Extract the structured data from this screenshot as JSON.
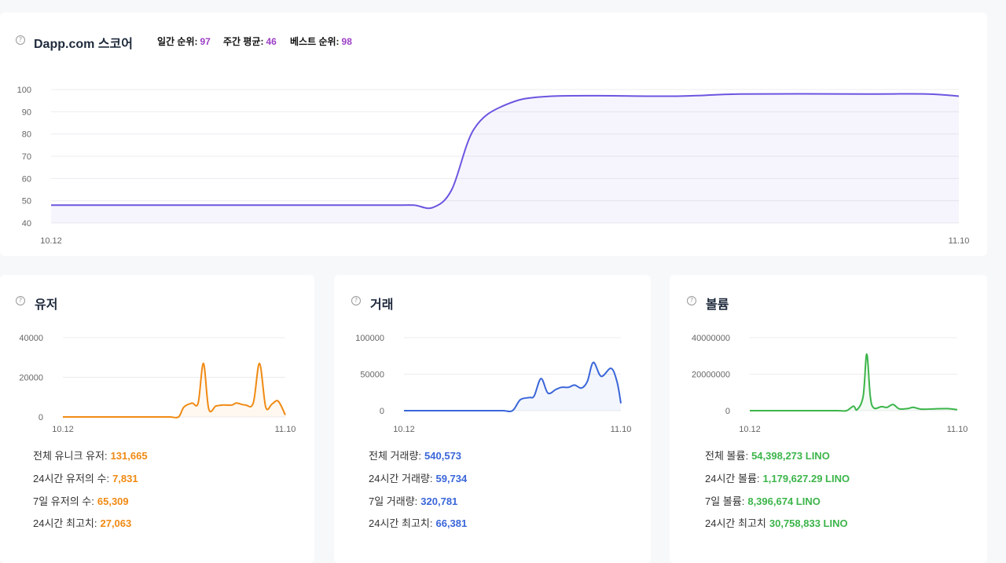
{
  "score": {
    "title": "Dapp.com 스코어",
    "help_icon": "question-circle-icon",
    "stats": [
      {
        "label": "일간 순위:",
        "value": "97"
      },
      {
        "label": "주간 평균:",
        "value": "46"
      },
      {
        "label": "베스트 순위:",
        "value": "98"
      }
    ],
    "accent": "#9c3fc6"
  },
  "users": {
    "title": "유저",
    "color": "#f08a13",
    "stats": [
      {
        "label": "전체 유니크 유저:",
        "value": "131,665"
      },
      {
        "label": "24시간 유저의 수:",
        "value": "7,831"
      },
      {
        "label": "7일 유저의 수:",
        "value": "65,309"
      },
      {
        "label": "24시간 최고치:",
        "value": "27,063"
      }
    ]
  },
  "transactions": {
    "title": "거래",
    "color": "#3a66d9",
    "stats": [
      {
        "label": "전체 거래량:",
        "value": "540,573"
      },
      {
        "label": "24시간 거래량:",
        "value": "59,734"
      },
      {
        "label": "7일 거래량:",
        "value": "320,781"
      },
      {
        "label": "24시간 최고치:",
        "value": "66,381"
      }
    ]
  },
  "volume": {
    "title": "볼륨",
    "color": "#3cb54a",
    "stats": [
      {
        "label": "전체 볼륨:",
        "value": "54,398,273 LINO"
      },
      {
        "label": "24시간 볼륨:",
        "value": "1,179,627.29 LINO"
      },
      {
        "label": "7일 볼륨:",
        "value": "8,396,674 LINO"
      },
      {
        "label": "24시간 최고치",
        "value": "30,758,833 LINO"
      }
    ]
  },
  "chart_data": [
    {
      "type": "area",
      "x_start_label": "10.12",
      "x_end_label": "11.10",
      "yticks": [
        40,
        50,
        60,
        70,
        80,
        90,
        100
      ],
      "ylim": [
        40,
        100
      ],
      "grid": true,
      "color": "#6c55e0",
      "series": [
        {
          "points": [
            [
              0,
              48
            ],
            [
              1,
              48
            ],
            [
              2,
              48
            ],
            [
              3,
              48
            ],
            [
              4,
              48
            ],
            [
              5,
              48
            ],
            [
              6,
              48
            ],
            [
              7,
              48
            ],
            [
              8,
              48
            ],
            [
              9,
              48
            ],
            [
              10,
              48
            ],
            [
              11,
              48
            ],
            [
              11.6,
              48
            ],
            [
              12.2,
              47
            ],
            [
              12.8,
              55
            ],
            [
              13.5,
              82
            ],
            [
              14.5,
              93
            ],
            [
              16,
              97
            ],
            [
              20,
              97
            ],
            [
              22,
              98
            ],
            [
              26,
              98
            ],
            [
              28,
              98
            ],
            [
              29,
              97
            ]
          ]
        }
      ]
    },
    {
      "type": "area",
      "x_start_label": "10.12",
      "x_end_label": "11.10",
      "yticks": [
        0,
        20000,
        40000
      ],
      "ylim": [
        0,
        40000
      ],
      "grid": true,
      "color": "#f08a13",
      "series": [
        {
          "points": [
            [
              0,
              0
            ],
            [
              2,
              0
            ],
            [
              4,
              0
            ],
            [
              6,
              0
            ],
            [
              8,
              0
            ],
            [
              10,
              0
            ],
            [
              12,
              0
            ],
            [
              13,
              0
            ],
            [
              13.6,
              5000
            ],
            [
              14.5,
              7000
            ],
            [
              15.2,
              7000
            ],
            [
              15.8,
              27000
            ],
            [
              16.4,
              4000
            ],
            [
              17.2,
              5500
            ],
            [
              18,
              6000
            ],
            [
              19,
              6000
            ],
            [
              19.5,
              7000
            ],
            [
              20.5,
              6000
            ],
            [
              21.4,
              7000
            ],
            [
              22.1,
              27000
            ],
            [
              22.8,
              5000
            ],
            [
              23.5,
              6500
            ],
            [
              24.2,
              8000
            ],
            [
              25,
              1000
            ]
          ]
        }
      ]
    },
    {
      "type": "area",
      "x_start_label": "10.12",
      "x_end_label": "11.10",
      "yticks": [
        0,
        50000,
        100000
      ],
      "ylim": [
        0,
        100000
      ],
      "grid": true,
      "color": "#3a66d9",
      "series": [
        {
          "points": [
            [
              0,
              0
            ],
            [
              2,
              0
            ],
            [
              4,
              0
            ],
            [
              6,
              0
            ],
            [
              8,
              0
            ],
            [
              10,
              0
            ],
            [
              11,
              0
            ],
            [
              11.8,
              15000
            ],
            [
              12.7,
              18000
            ],
            [
              13.2,
              20000
            ],
            [
              13.9,
              44000
            ],
            [
              14.6,
              24000
            ],
            [
              15.4,
              29000
            ],
            [
              16,
              32000
            ],
            [
              16.7,
              32000
            ],
            [
              17.3,
              35000
            ],
            [
              18,
              31000
            ],
            [
              18.6,
              40000
            ],
            [
              19.2,
              66000
            ],
            [
              20,
              47000
            ],
            [
              21,
              58000
            ],
            [
              21.6,
              40000
            ],
            [
              22,
              10000
            ]
          ]
        }
      ]
    },
    {
      "type": "area",
      "x_start_label": "10.12",
      "x_end_label": "11.10",
      "yticks": [
        0,
        20000000,
        40000000
      ],
      "ylim": [
        0,
        40000000
      ],
      "grid": true,
      "color": "#3cb54a",
      "series": [
        {
          "points": [
            [
              0,
              0
            ],
            [
              2,
              0
            ],
            [
              4,
              0
            ],
            [
              6,
              0
            ],
            [
              8,
              0
            ],
            [
              10,
              0
            ],
            [
              11,
              0
            ],
            [
              11.8,
              2500000
            ],
            [
              12.2,
              500000
            ],
            [
              12.9,
              8000000
            ],
            [
              13.3,
              31000000
            ],
            [
              13.7,
              8000000
            ],
            [
              14.1,
              1500000
            ],
            [
              15,
              2200000
            ],
            [
              15.6,
              1800000
            ],
            [
              16.3,
              3400000
            ],
            [
              17,
              1000000
            ],
            [
              18,
              1200000
            ],
            [
              18.6,
              1800000
            ],
            [
              19.5,
              800000
            ],
            [
              21,
              1000000
            ],
            [
              22.5,
              1100000
            ],
            [
              23.6,
              500000
            ]
          ]
        }
      ]
    }
  ]
}
